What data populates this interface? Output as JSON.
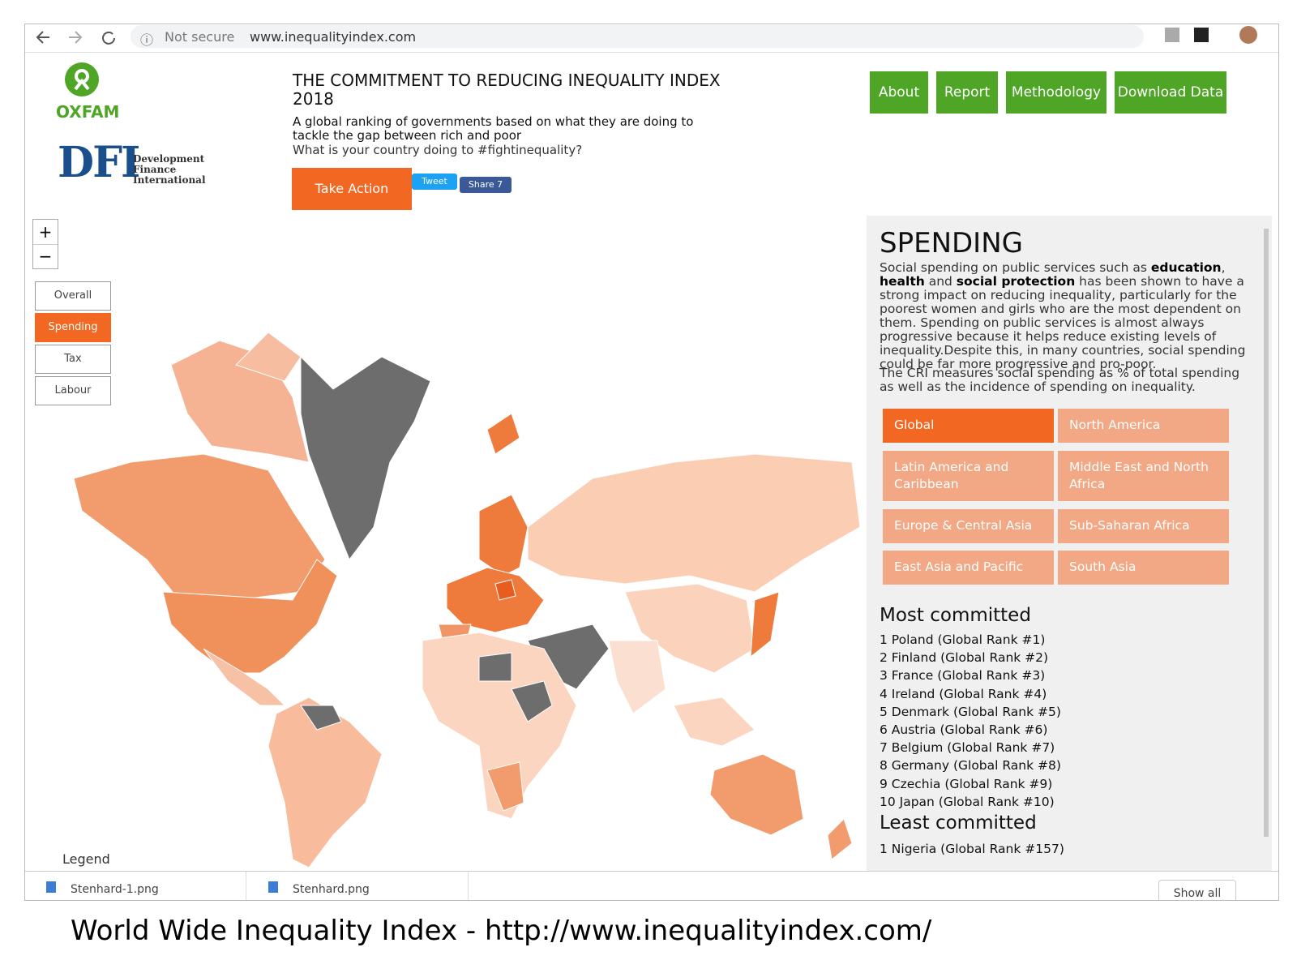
{
  "browser": {
    "security": "Not secure",
    "url": "www.inequalityindex.com"
  },
  "logos": {
    "oxfam": "OXFAM",
    "dfi_mark": "DFI",
    "dfi_lines": [
      "Development",
      "Finance",
      "International"
    ]
  },
  "nav": [
    "About",
    "Report",
    "Methodology",
    "Download Data"
  ],
  "header": {
    "title": "THE COMMITMENT TO REDUCING INEQUALITY INDEX 2018",
    "subtitle": "A global ranking of governments based on what they are doing to tackle the gap between rich and poor",
    "question": "What is your country doing to #fightinequality?",
    "action_button": "Take Action",
    "tweet": "Tweet",
    "share": "Share 7"
  },
  "map": {
    "zoom": [
      "+",
      "−"
    ],
    "layers": [
      "Overall",
      "Spending",
      "Tax",
      "Labour"
    ],
    "active_layer": 1,
    "legend": "Legend"
  },
  "panel": {
    "heading": "SPENDING",
    "paragraph_1": [
      {
        "text": "Social spending on public services such as "
      },
      {
        "text": "education",
        "bold": true
      },
      {
        "text": ", "
      },
      {
        "text": "health",
        "bold": true
      },
      {
        "text": " and "
      },
      {
        "text": "social protection",
        "bold": true
      },
      {
        "text": " has been shown to have a strong impact on reducing inequality, particularly for the poorest women and girls who are the most dependent on them. Spending on public services is almost always progressive because it helps reduce existing levels of inequality.Despite this, in many countries, social spending could be far more progressive and pro-poor."
      }
    ],
    "paragraph_2": "The CRI measures social spending as % of total spending as well as the incidence of spending on inequality.",
    "regions": [
      "Global",
      "North America",
      "Latin America and Caribbean",
      "Middle East and North Africa",
      "Europe & Central Asia",
      "Sub-Saharan Africa",
      "East Asia and Pacific",
      "South Asia"
    ],
    "active_region": 0,
    "most_heading": "Most committed",
    "most": [
      "1 Poland (Global Rank #1)",
      "2 Finland (Global Rank #2)",
      "3 France (Global Rank #3)",
      "4 Ireland (Global Rank #4)",
      "5 Denmark (Global Rank #5)",
      "6 Austria (Global Rank #6)",
      "7 Belgium (Global Rank #7)",
      "8 Germany (Global Rank #8)",
      "9 Czechia (Global Rank #9)",
      "10 Japan (Global Rank #10)"
    ],
    "least_heading": "Least committed",
    "least": [
      "1 Nigeria (Global Rank #157)"
    ]
  },
  "downloads": {
    "files": [
      "Stenhard-1.png",
      "Stenhard.png"
    ],
    "show_all": "Show all"
  },
  "caption": "World Wide Inequality Index - http://www.inequalityindex.com/"
}
